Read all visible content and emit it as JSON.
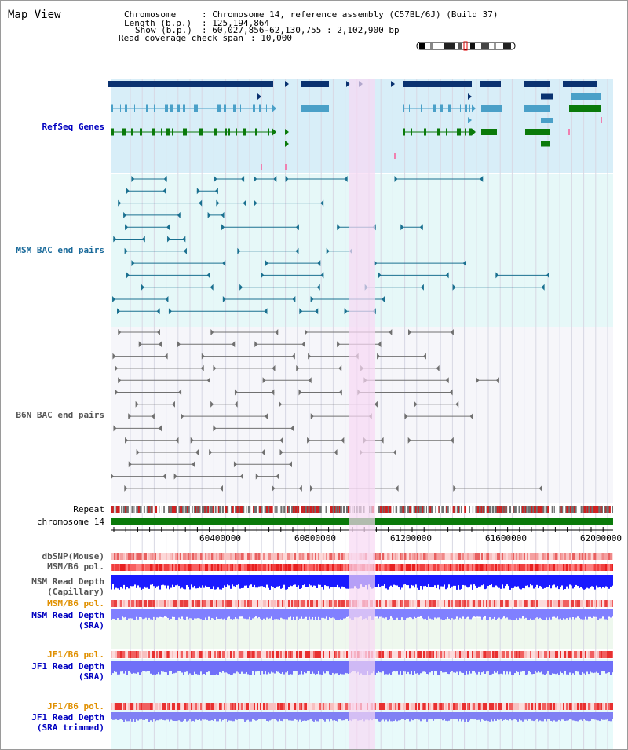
{
  "title": "Map View",
  "header": {
    "chromosome_key": "Chromosome",
    "chromosome_val": ": Chromosome 14, reference assembly (C57BL/6J) (Build 37)",
    "length_key": "Length (b.p.)",
    "length_val": ": 125,194,864",
    "show_key": "Show (b.p.)",
    "show_val": ": 60,027,856-62,130,755 : 2,102,900 bp",
    "span_key": "Read coverage check span",
    "span_val": ": 10,000"
  },
  "tracks": {
    "refseq": "RefSeq Genes",
    "msm_bac": "MSM BAC end pairs",
    "b6n_bac": "B6N BAC end pairs",
    "repeat": "Repeat",
    "chromosome": "chromosome 14",
    "dbsnp": "dbSNP(Mouse)",
    "msm_b6_pol_1": "MSM/B6 pol.",
    "msm_depth_cap": "MSM Read Depth\n(Capillary)",
    "msm_b6_pol_2": "MSM/B6 pol.",
    "msm_depth_sra": "MSM Read Depth\n(SRA)",
    "jf1_b6_pol_1": "JF1/B6 pol.",
    "jf1_depth_sra": "JF1 Read Depth\n(SRA)",
    "jf1_b6_pol_2": "JF1/B6 pol.",
    "jf1_depth_trim": "JF1 Read Depth\n(SRA trimmed)"
  },
  "axis": {
    "ticks": [
      "60400000",
      "60800000",
      "61200000",
      "61600000",
      "62000000"
    ]
  },
  "colors": {
    "refseq_bg": "#d8eef8",
    "msm_bg": "#e6f8f8",
    "highlight": "#f8d8f4",
    "dark_gene": "#0a3270",
    "mid_gene": "#4aa0c8",
    "green_gene": "#0a7a0a",
    "bac_teal": "#1a7090",
    "bac_grey": "#707070",
    "repeat_red": "#d02020",
    "snp_light": "#f4a0a0",
    "pol_red": "#f04040",
    "depth_blue": "#1a1aff",
    "depth_light": "#8080ff"
  }
}
